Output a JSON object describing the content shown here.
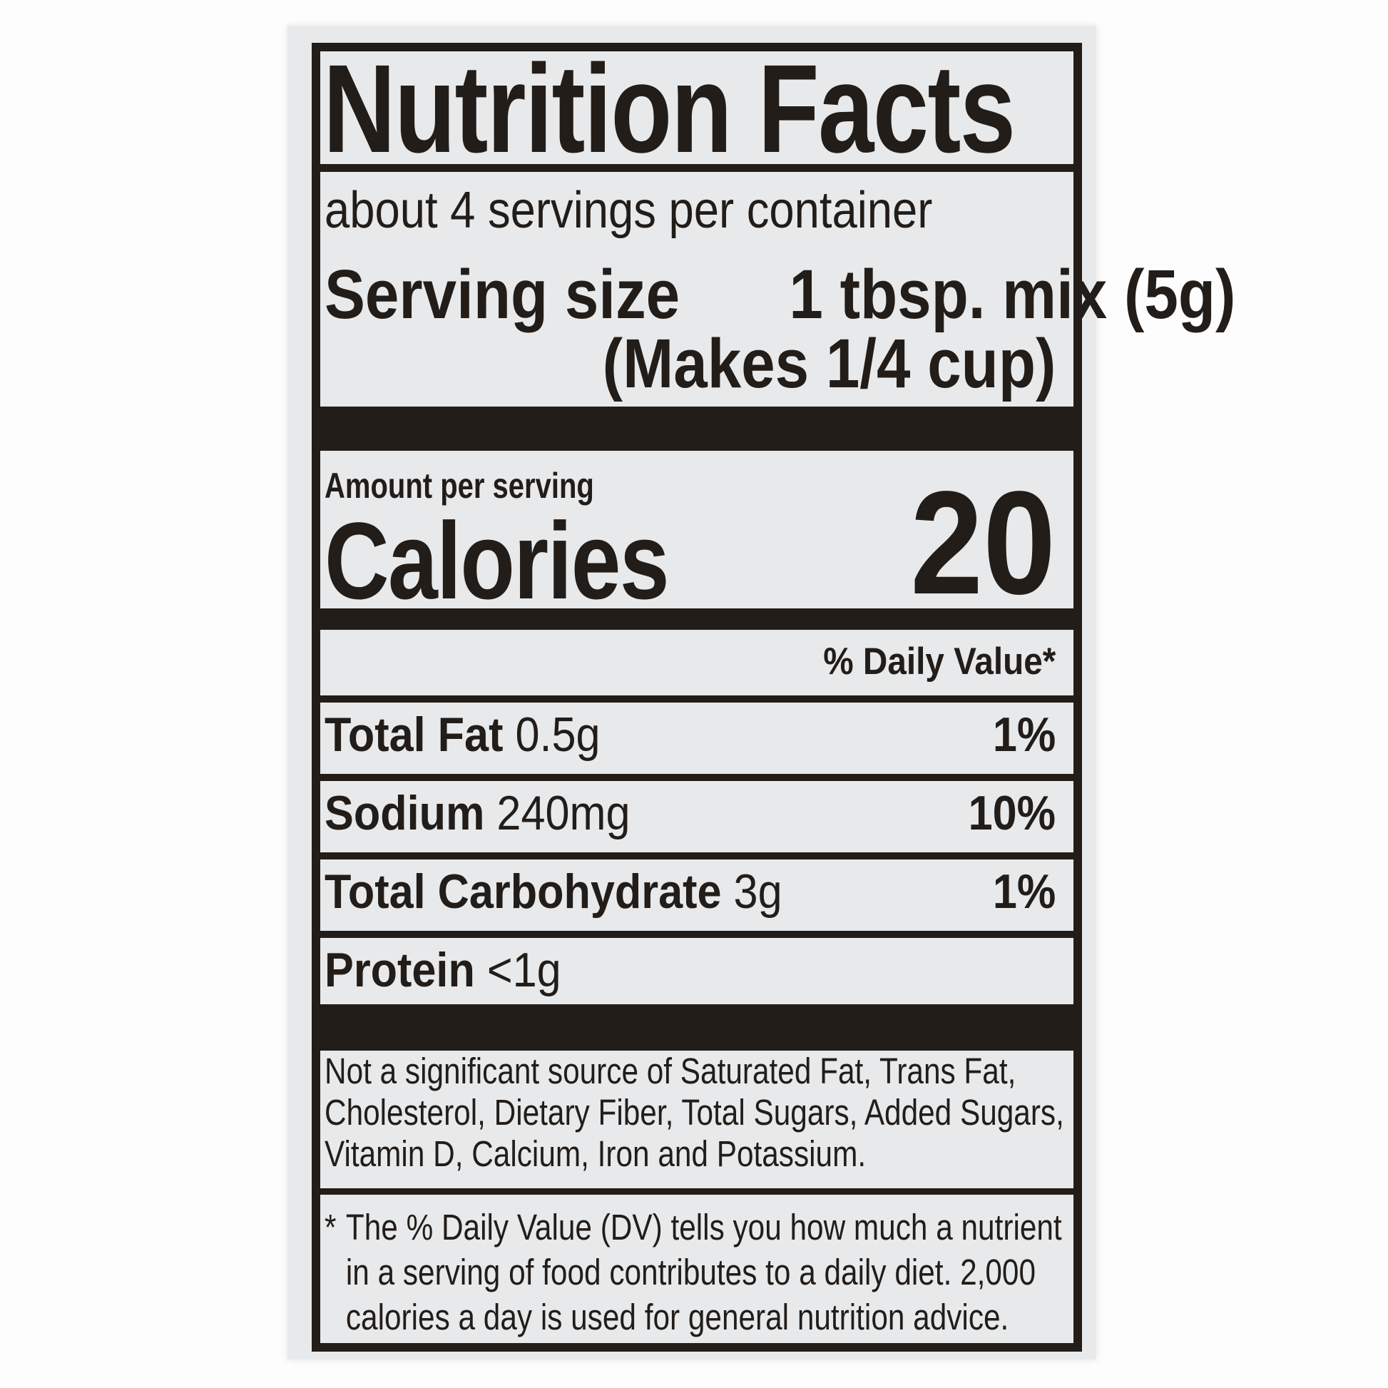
{
  "label": {
    "title": "Nutrition Facts",
    "servings_per_container": "about 4 servings per container",
    "serving_size_label": "Serving size",
    "serving_size_value": "1 tbsp. mix (5g)",
    "serving_size_note": "(Makes 1/4 cup)",
    "amount_per_serving": "Amount per serving",
    "calories_label": "Calories",
    "calories_value": "20",
    "daily_value_header": "% Daily Value*",
    "nutrients": [
      {
        "name": "Total Fat",
        "amount": "0.5g",
        "dv": "1%"
      },
      {
        "name": "Sodium",
        "amount": "240mg",
        "dv": "10%"
      },
      {
        "name": "Total Carbohydrate",
        "amount": "3g",
        "dv": "1%"
      },
      {
        "name": "Protein",
        "amount": "<1g",
        "dv": ""
      }
    ],
    "not_significant_lines": [
      "Not a significant source of Saturated Fat, Trans Fat,",
      "Cholesterol, Dietary Fiber, Total Sugars, Added Sugars,",
      "Vitamin D, Calcium, Iron and Potassium."
    ],
    "footnote_marker": "*",
    "footnote_lines": [
      "The % Daily Value (DV) tells you how much a nutrient",
      "in a serving of food contributes to a daily diet. 2,000",
      "calories a day is used for general nutrition advice."
    ],
    "colors": {
      "ink": "#221d19",
      "paper": "#e8e9ea",
      "page_background": "#fdfdfd"
    }
  }
}
